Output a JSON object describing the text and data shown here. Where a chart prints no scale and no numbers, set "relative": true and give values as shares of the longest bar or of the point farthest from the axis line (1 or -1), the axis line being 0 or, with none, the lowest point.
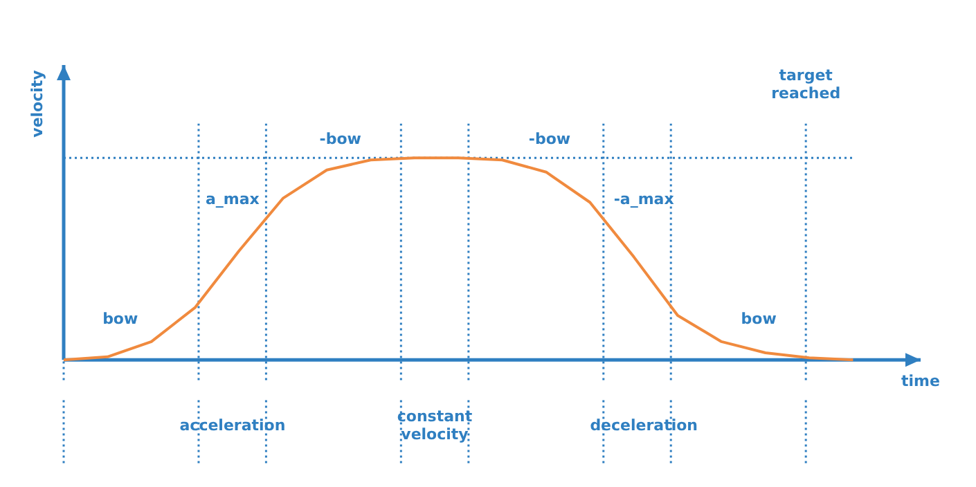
{
  "chart_data": {
    "type": "line",
    "relative": true,
    "xlabel": "time",
    "ylabel": "velocity",
    "categories": [
      null,
      null,
      null,
      null,
      null,
      null,
      null,
      null,
      null,
      null,
      null,
      null,
      null,
      null,
      null,
      null,
      null,
      null,
      null
    ],
    "series": [
      {
        "color": "#f08a3e",
        "values": [
          0,
          0.015,
          0.09,
          0.26,
          0.54,
          0.8,
          0.94,
          0.99,
          1,
          1,
          0.99,
          0.93,
          0.78,
          0.51,
          0.22,
          0.09,
          0.035,
          0.01,
          0
        ]
      }
    ],
    "annotations": [
      "bow",
      "a_max",
      "-bow",
      "-bow",
      "-a_max",
      "bow",
      "acceleration",
      "constant velocity",
      "deceleration",
      "target reached"
    ],
    "tick_labels": false,
    "grid": false,
    "legend": false,
    "marker": "none",
    "line_style": "solid"
  }
}
